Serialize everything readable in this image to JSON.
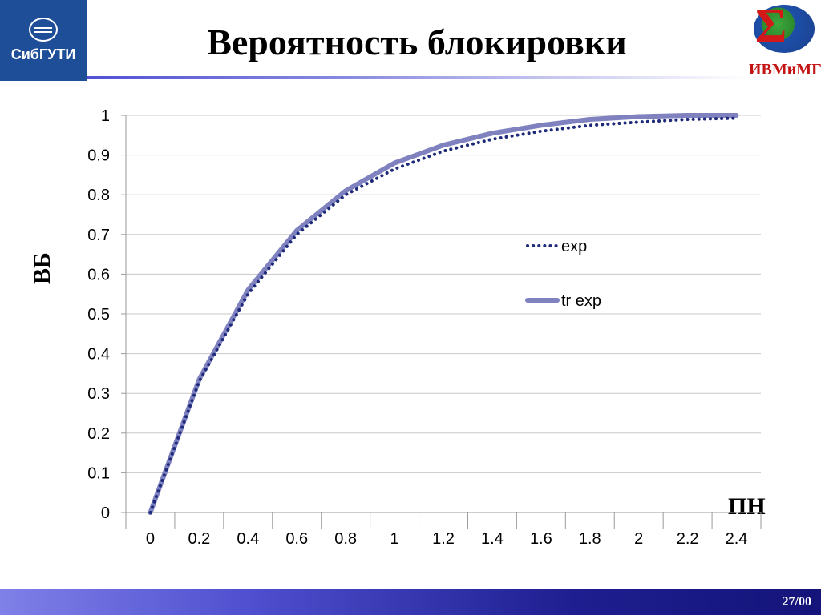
{
  "header": {
    "title": "Вероятность блокировки",
    "logo_left_text": "СибГУТИ",
    "logo_right_text": "ИВМиМГ"
  },
  "footer": {
    "page": "27/00"
  },
  "colors": {
    "exp": "#1e2a7a",
    "tr_exp": "#7f82bf",
    "header_blue": "#1f4e98",
    "grid": "#c8c8c8"
  },
  "chart_data": {
    "type": "line",
    "xlabel": "ПН",
    "ylabel": "ВБ",
    "categories": [
      "0",
      "0.2",
      "0.4",
      "0.6",
      "0.8",
      "1",
      "1.2",
      "1.4",
      "1.6",
      "1.8",
      "2",
      "2.2",
      "2.4"
    ],
    "y_ticks": [
      "0",
      "0.1",
      "0.2",
      "0.3",
      "0.4",
      "0.5",
      "0.6",
      "0.7",
      "0.8",
      "0.9",
      "1"
    ],
    "ylim": [
      0,
      1
    ],
    "grid": true,
    "legend_position": "right",
    "series": [
      {
        "name": "exp",
        "style": "dotted",
        "values": [
          0,
          0.33,
          0.55,
          0.7,
          0.8,
          0.865,
          0.91,
          0.94,
          0.96,
          0.975,
          0.983,
          0.99,
          0.993
        ]
      },
      {
        "name": "tr exp",
        "style": "solid",
        "values": [
          0,
          0.335,
          0.56,
          0.71,
          0.81,
          0.88,
          0.925,
          0.955,
          0.975,
          0.99,
          0.997,
          1.0,
          1.0
        ]
      }
    ]
  }
}
